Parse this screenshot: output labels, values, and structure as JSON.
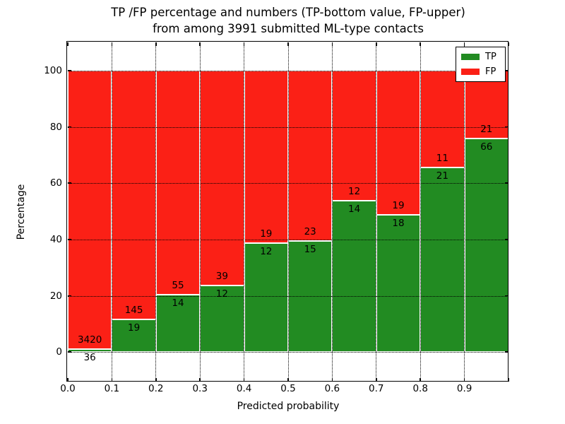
{
  "title": {
    "line1": "TP /FP percentage and numbers (TP-bottom value, FP-upper)",
    "line2": "from among 3991 submitted ML-type contacts"
  },
  "axes": {
    "xlabel": "Predicted probability",
    "ylabel": "Percentage",
    "x_tick_labels": [
      "0.0",
      "0.1",
      "0.2",
      "0.3",
      "0.4",
      "0.5",
      "0.6",
      "0.7",
      "0.8",
      "0.9"
    ],
    "y_tick_labels": [
      "0",
      "20",
      "40",
      "60",
      "80",
      "100"
    ]
  },
  "legend": {
    "items": [
      {
        "label": "TP",
        "color": "#228b22"
      },
      {
        "label": "FP",
        "color": "#fb2016"
      }
    ]
  },
  "colors": {
    "tp": "#228b22",
    "fp": "#fb2016",
    "grid": "#000000",
    "background": "#ffffff"
  },
  "chart_data": {
    "type": "bar",
    "stacked": true,
    "normalized": "each bin stacked to 100%",
    "title": "TP /FP percentage and numbers (TP-bottom value, FP-upper) from among 3991 submitted ML-type contacts",
    "xlabel": "Predicted probability",
    "ylabel": "Percentage",
    "xlim": [
      0.0,
      1.0
    ],
    "ylim": [
      -10.5,
      110
    ],
    "x_ticks": [
      0.0,
      0.1,
      0.2,
      0.3,
      0.4,
      0.5,
      0.6,
      0.7,
      0.8,
      0.9,
      1.0
    ],
    "y_ticks": [
      0,
      20,
      40,
      60,
      80,
      100
    ],
    "grid": true,
    "legend_position": "upper right",
    "bin_width": 0.1,
    "bin_starts": [
      0.0,
      0.1,
      0.2,
      0.3,
      0.4,
      0.5,
      0.6,
      0.7,
      0.8,
      0.9
    ],
    "series": [
      {
        "name": "TP",
        "counts": [
          36,
          19,
          14,
          12,
          12,
          15,
          14,
          18,
          21,
          66
        ]
      },
      {
        "name": "FP",
        "counts": [
          3420,
          145,
          55,
          39,
          19,
          23,
          12,
          19,
          11,
          21
        ]
      }
    ],
    "tp_percent_of_bin": [
      1.04,
      11.59,
      20.29,
      23.53,
      38.71,
      39.47,
      53.85,
      48.65,
      65.63,
      75.86
    ],
    "total_contacts": 3991
  }
}
